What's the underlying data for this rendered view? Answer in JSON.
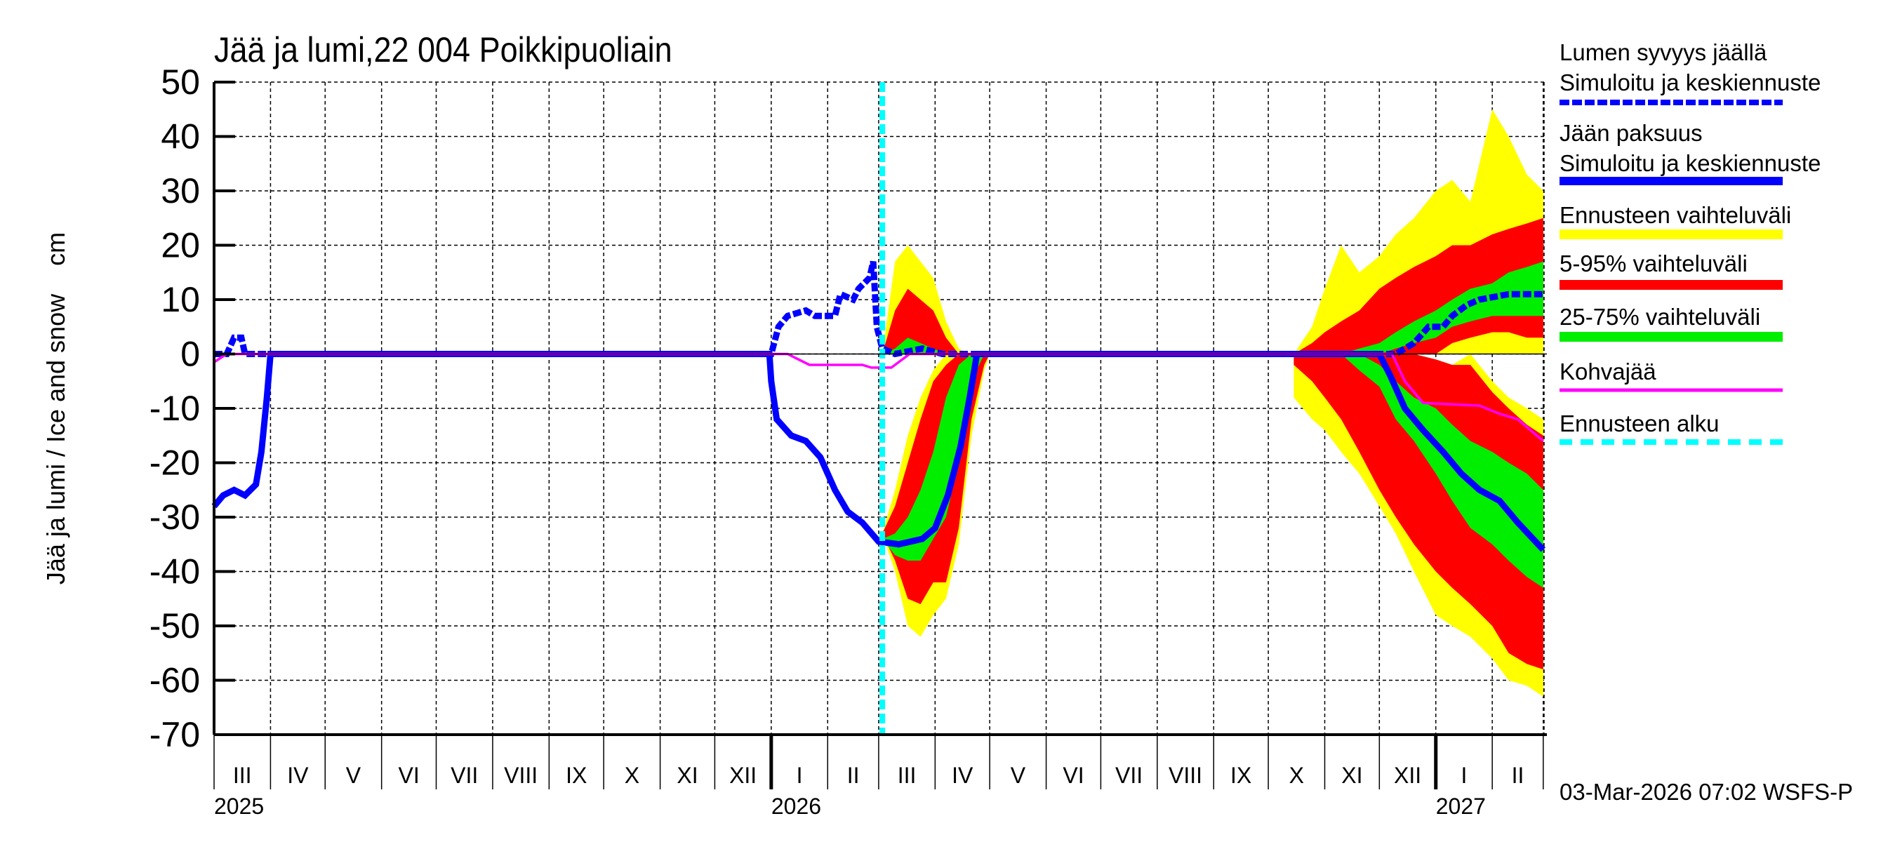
{
  "chart_data": {
    "type": "area",
    "title": "Jää ja lumi,22 004 Poikkipuoliain",
    "ylabel": "Jää ja lumi / Ice and snow    cm",
    "ylim": [
      -70,
      50
    ],
    "yticks": [
      50,
      40,
      30,
      20,
      10,
      0,
      -10,
      -20,
      -30,
      -40,
      -50,
      -60,
      -70
    ],
    "xlim": [
      "2025-03-01",
      "2027-03-03"
    ],
    "grid": true,
    "legend_position": "right",
    "month_labels": [
      "III",
      "IV",
      "V",
      "VI",
      "VII",
      "VIII",
      "IX",
      "X",
      "XI",
      "XII",
      "I",
      "II",
      "III",
      "IV",
      "V",
      "VI",
      "VII",
      "VIII",
      "IX",
      "X",
      "XI",
      "XII",
      "I",
      "II"
    ],
    "year_labels": [
      {
        "label": "2025",
        "date": "2025-03-01"
      },
      {
        "label": "2026",
        "date": "2026-01-01"
      },
      {
        "label": "2027",
        "date": "2027-01-01"
      }
    ],
    "forecast_start": "2026-03-03",
    "timestamp": "03-Mar-2026 07:02 WSFS-P",
    "colors": {
      "snow": "#0000ff",
      "ice": "#0000ff",
      "yellow": "#ffff00",
      "red": "#ff0000",
      "green": "#00ee00",
      "kohva": "#ff00ff",
      "forecast": "#00ffff"
    },
    "legend": [
      {
        "line1": "Lumen syvyys jäällä",
        "line2": "Simuloitu ja keskiennuste",
        "style": "snow"
      },
      {
        "line1": "Jään paksuus",
        "line2": "Simuloitu ja keskiennuste",
        "style": "ice"
      },
      {
        "line1": "Ennusteen vaihteluväli",
        "style": "yellow"
      },
      {
        "line1": "5-95% vaihteluväli",
        "style": "red"
      },
      {
        "line1": "25-75% vaihteluväli",
        "style": "green"
      },
      {
        "line1": "Kohvajää",
        "style": "kohva"
      },
      {
        "line1": "Ennusteen alku",
        "style": "forecast"
      }
    ],
    "bands": [
      {
        "dates": [
          "2026-03-03",
          "2026-03-10",
          "2026-03-17",
          "2026-03-24",
          "2026-03-31",
          "2026-04-07",
          "2026-04-14",
          "2026-04-21",
          "2026-04-28",
          "2026-05-01"
        ],
        "snow": {
          "yellow": [
            [
              0,
              0
            ],
            [
              0,
              17
            ],
            [
              0,
              20
            ],
            [
              0,
              17
            ],
            [
              0,
              14
            ],
            [
              0,
              6
            ],
            [
              0,
              1
            ],
            [
              0,
              0
            ],
            [
              0,
              0
            ],
            [
              0,
              0
            ]
          ],
          "red": [
            [
              0,
              0
            ],
            [
              0,
              8
            ],
            [
              0,
              12
            ],
            [
              0,
              10
            ],
            [
              0,
              8
            ],
            [
              0,
              3
            ],
            [
              0,
              0
            ],
            [
              0,
              0
            ],
            [
              0,
              0
            ],
            [
              0,
              0
            ]
          ],
          "green": [
            [
              0,
              0
            ],
            [
              0,
              1
            ],
            [
              0,
              3
            ],
            [
              0,
              2
            ],
            [
              0,
              1
            ],
            [
              0,
              0
            ],
            [
              0,
              0
            ],
            [
              0,
              0
            ],
            [
              0,
              0
            ],
            [
              0,
              0
            ]
          ]
        },
        "ice": {
          "yellow": [
            [
              -33,
              -33
            ],
            [
              -40,
              -25
            ],
            [
              -50,
              -15
            ],
            [
              -52,
              -8
            ],
            [
              -48,
              -3
            ],
            [
              -45,
              0
            ],
            [
              -35,
              0
            ],
            [
              -15,
              0
            ],
            [
              -3,
              0
            ],
            [
              0,
              0
            ]
          ],
          "red": [
            [
              -33,
              -33
            ],
            [
              -38,
              -28
            ],
            [
              -45,
              -20
            ],
            [
              -46,
              -12
            ],
            [
              -42,
              -5
            ],
            [
              -42,
              -2
            ],
            [
              -32,
              0
            ],
            [
              -12,
              0
            ],
            [
              -2,
              0
            ],
            [
              0,
              0
            ]
          ],
          "green": [
            [
              -34,
              -34
            ],
            [
              -37,
              -33
            ],
            [
              -38,
              -30
            ],
            [
              -38,
              -25
            ],
            [
              -34,
              -18
            ],
            [
              -30,
              -8
            ],
            [
              -20,
              -2
            ],
            [
              -5,
              0
            ],
            [
              0,
              0
            ],
            [
              0,
              0
            ]
          ]
        }
      },
      {
        "dates": [
          "2026-10-15",
          "2026-10-25",
          "2026-11-01",
          "2026-11-10",
          "2026-11-20",
          "2026-12-01",
          "2026-12-10",
          "2026-12-20",
          "2027-01-01",
          "2027-01-10",
          "2027-01-20",
          "2027-02-01",
          "2027-02-10",
          "2027-02-20",
          "2027-03-01"
        ],
        "snow": {
          "yellow": [
            [
              0,
              0
            ],
            [
              0,
              5
            ],
            [
              0,
              12
            ],
            [
              0,
              20
            ],
            [
              0,
              15
            ],
            [
              0,
              18
            ],
            [
              0,
              22
            ],
            [
              0,
              25
            ],
            [
              0,
              30
            ],
            [
              0,
              32
            ],
            [
              0,
              28
            ],
            [
              0,
              45
            ],
            [
              0,
              40
            ],
            [
              0,
              33
            ],
            [
              0,
              30
            ]
          ],
          "red": [
            [
              0,
              0
            ],
            [
              0,
              2
            ],
            [
              0,
              4
            ],
            [
              0,
              6
            ],
            [
              0,
              8
            ],
            [
              0,
              12
            ],
            [
              0,
              14
            ],
            [
              0,
              16
            ],
            [
              0,
              18
            ],
            [
              2,
              20
            ],
            [
              3,
              20
            ],
            [
              4,
              22
            ],
            [
              4,
              23
            ],
            [
              3,
              24
            ],
            [
              3,
              25
            ]
          ],
          "green": [
            [
              0,
              0
            ],
            [
              0,
              0
            ],
            [
              0,
              0
            ],
            [
              0,
              0
            ],
            [
              0,
              1
            ],
            [
              0,
              2
            ],
            [
              1,
              4
            ],
            [
              2,
              6
            ],
            [
              3,
              8
            ],
            [
              5,
              10
            ],
            [
              6,
              12
            ],
            [
              7,
              13
            ],
            [
              7,
              15
            ],
            [
              7,
              16
            ],
            [
              7,
              17
            ]
          ]
        },
        "ice": {
          "yellow": [
            [
              -8,
              0
            ],
            [
              -12,
              0
            ],
            [
              -14,
              0
            ],
            [
              -18,
              0
            ],
            [
              -22,
              0
            ],
            [
              -28,
              0
            ],
            [
              -33,
              0
            ],
            [
              -40,
              0
            ],
            [
              -48,
              -1
            ],
            [
              -50,
              -2
            ],
            [
              -52,
              0
            ],
            [
              -56,
              -5
            ],
            [
              -60,
              -8
            ],
            [
              -61,
              -10
            ],
            [
              -63,
              -12
            ]
          ],
          "red": [
            [
              -2,
              0
            ],
            [
              -5,
              0
            ],
            [
              -8,
              0
            ],
            [
              -12,
              0
            ],
            [
              -18,
              0
            ],
            [
              -25,
              0
            ],
            [
              -30,
              0
            ],
            [
              -35,
              0
            ],
            [
              -40,
              -1
            ],
            [
              -43,
              -2
            ],
            [
              -46,
              -2
            ],
            [
              -50,
              -7
            ],
            [
              -55,
              -10
            ],
            [
              -57,
              -13
            ],
            [
              -58,
              -15
            ]
          ],
          "green": [
            [
              0,
              0
            ],
            [
              0,
              0
            ],
            [
              0,
              0
            ],
            [
              0,
              0
            ],
            [
              -3,
              0
            ],
            [
              -6,
              -2
            ],
            [
              -12,
              -5
            ],
            [
              -16,
              -8
            ],
            [
              -22,
              -10
            ],
            [
              -27,
              -13
            ],
            [
              -32,
              -16
            ],
            [
              -35,
              -18
            ],
            [
              -38,
              -20
            ],
            [
              -41,
              -22
            ],
            [
              -43,
              -25
            ]
          ]
        }
      }
    ],
    "series": [
      {
        "name": "Lumen syvyys jäällä",
        "style": "snow",
        "points": [
          [
            "2025-03-01",
            0
          ],
          [
            "2025-03-08",
            0
          ],
          [
            "2025-03-12",
            3
          ],
          [
            "2025-03-16",
            3
          ],
          [
            "2025-03-18",
            0
          ],
          [
            "2026-01-01",
            0
          ],
          [
            "2026-01-05",
            5
          ],
          [
            "2026-01-10",
            7
          ],
          [
            "2026-01-20",
            8
          ],
          [
            "2026-01-25",
            7
          ],
          [
            "2026-02-05",
            7
          ],
          [
            "2026-02-08",
            11
          ],
          [
            "2026-02-15",
            10
          ],
          [
            "2026-02-18",
            12
          ],
          [
            "2026-02-24",
            14
          ],
          [
            "2026-02-26",
            17
          ],
          [
            "2026-02-28",
            5
          ],
          [
            "2026-03-03",
            1
          ],
          [
            "2026-03-10",
            0
          ],
          [
            "2026-03-25",
            1
          ],
          [
            "2026-04-05",
            0
          ],
          [
            "2026-12-10",
            0
          ],
          [
            "2026-12-20",
            2
          ],
          [
            "2026-12-28",
            5
          ],
          [
            "2027-01-05",
            5
          ],
          [
            "2027-01-10",
            7
          ],
          [
            "2027-01-18",
            9
          ],
          [
            "2027-01-25",
            10
          ],
          [
            "2027-02-10",
            11
          ],
          [
            "2027-03-01",
            11
          ]
        ]
      },
      {
        "name": "Jään paksuus",
        "style": "ice",
        "points": [
          [
            "2025-03-01",
            -28
          ],
          [
            "2025-03-06",
            -26
          ],
          [
            "2025-03-12",
            -25
          ],
          [
            "2025-03-18",
            -26
          ],
          [
            "2025-03-24",
            -24
          ],
          [
            "2025-03-27",
            -18
          ],
          [
            "2025-03-30",
            -8
          ],
          [
            "2025-04-01",
            0
          ],
          [
            "2025-12-31",
            0
          ],
          [
            "2026-01-01",
            -5
          ],
          [
            "2026-01-04",
            -12
          ],
          [
            "2026-01-12",
            -15
          ],
          [
            "2026-01-20",
            -16
          ],
          [
            "2026-01-28",
            -19
          ],
          [
            "2026-02-05",
            -25
          ],
          [
            "2026-02-12",
            -29
          ],
          [
            "2026-02-20",
            -31
          ],
          [
            "2026-03-01",
            -34.5
          ],
          [
            "2026-03-12",
            -35
          ],
          [
            "2026-03-25",
            -34
          ],
          [
            "2026-04-01",
            -32
          ],
          [
            "2026-04-08",
            -26
          ],
          [
            "2026-04-15",
            -17
          ],
          [
            "2026-04-20",
            -8
          ],
          [
            "2026-04-24",
            0
          ],
          [
            "2026-12-01",
            0
          ],
          [
            "2026-12-07",
            -4
          ],
          [
            "2026-12-15",
            -10
          ],
          [
            "2026-12-25",
            -14
          ],
          [
            "2027-01-05",
            -18
          ],
          [
            "2027-01-15",
            -22
          ],
          [
            "2027-01-25",
            -25
          ],
          [
            "2027-02-05",
            -27
          ],
          [
            "2027-02-15",
            -31
          ],
          [
            "2027-03-01",
            -36
          ]
        ]
      },
      {
        "name": "Kohvajää",
        "style": "kohva",
        "points": [
          [
            "2025-03-01",
            -1.5
          ],
          [
            "2025-03-08",
            0
          ],
          [
            "2026-01-10",
            0
          ],
          [
            "2026-01-16",
            -1
          ],
          [
            "2026-01-22",
            -2
          ],
          [
            "2026-02-20",
            -2
          ],
          [
            "2026-02-25",
            -2.5
          ],
          [
            "2026-03-08",
            -2.5
          ],
          [
            "2026-03-12",
            -1.5
          ],
          [
            "2026-03-18",
            0
          ],
          [
            "2026-12-08",
            0
          ],
          [
            "2026-12-15",
            -5
          ],
          [
            "2026-12-25",
            -9
          ],
          [
            "2027-01-25",
            -9.5
          ],
          [
            "2027-02-05",
            -11
          ],
          [
            "2027-02-15",
            -12
          ],
          [
            "2027-02-22",
            -14
          ],
          [
            "2027-03-01",
            -16
          ]
        ]
      }
    ]
  }
}
